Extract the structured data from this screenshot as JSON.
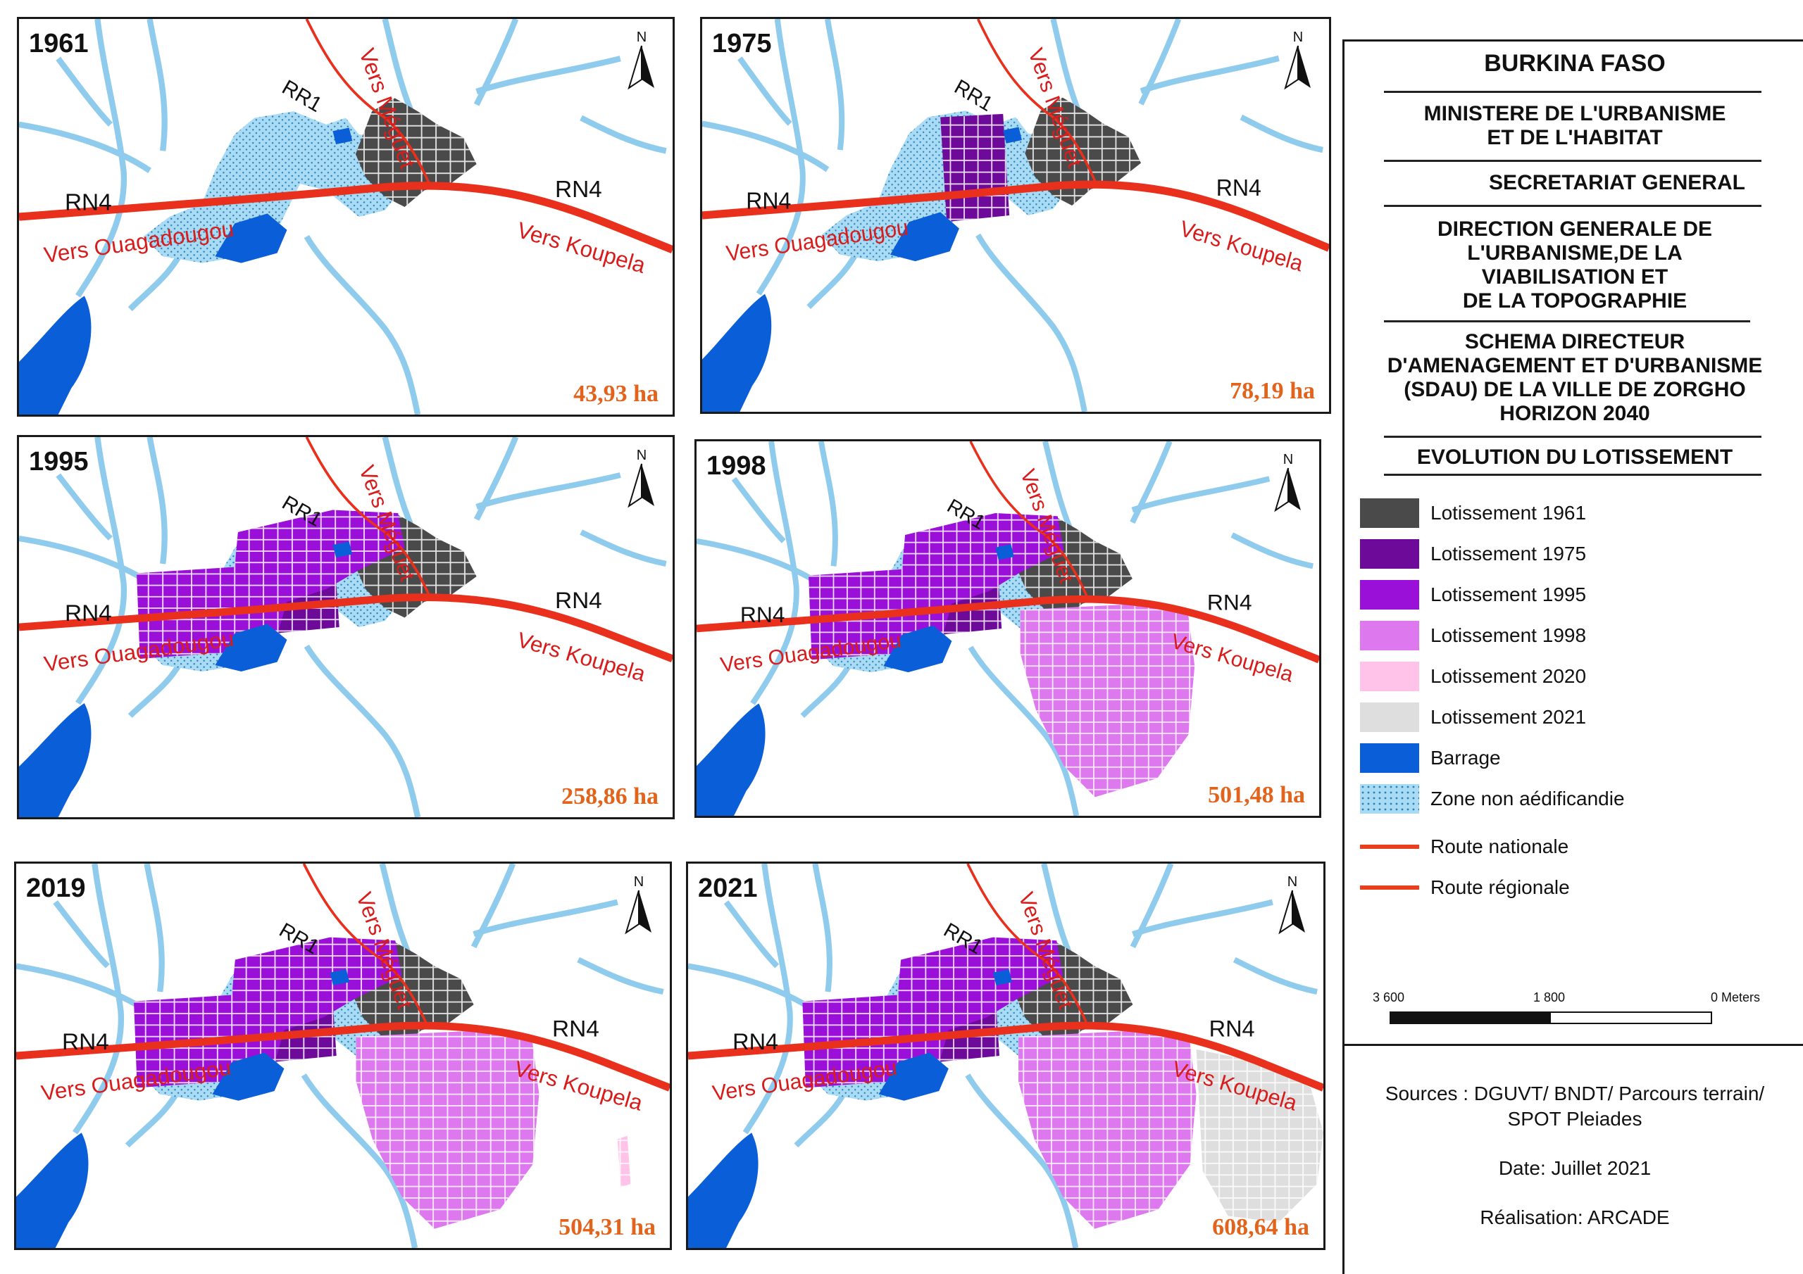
{
  "panels": [
    {
      "year": "1961",
      "area": "43,93 ha",
      "layers": [
        "l1961"
      ]
    },
    {
      "year": "1975",
      "area": "78,19 ha",
      "layers": [
        "l1961",
        "l1975"
      ]
    },
    {
      "year": "1995",
      "area": "258,86 ha",
      "layers": [
        "l1961",
        "l1975",
        "l1995"
      ]
    },
    {
      "year": "1998",
      "area": "501,48 ha",
      "layers": [
        "l1961",
        "l1975",
        "l1995",
        "l1998"
      ]
    },
    {
      "year": "2019",
      "area": "504,31 ha",
      "layers": [
        "l1961",
        "l1975",
        "l1995",
        "l1998",
        "l2020"
      ]
    },
    {
      "year": "2021",
      "area": "608,64 ha",
      "layers": [
        "l1961",
        "l1975",
        "l1995",
        "l1998",
        "l2020",
        "l2021"
      ]
    }
  ],
  "map_labels": {
    "rn4": "RN4",
    "rr1": "RR1",
    "vers_meguet": "Vers Méguet",
    "vers_ouaga": "Vers Ouagadougou",
    "vers_koupela": "Vers Koupela",
    "north": "N"
  },
  "title_block": {
    "country": "BURKINA FASO",
    "ministry": [
      "MINISTERE DE L'URBANISME",
      "ET DE L'HABITAT"
    ],
    "secretariat": "SECRETARIAT GENERAL",
    "direction": [
      "DIRECTION GENERALE DE",
      "L'URBANISME,DE LA",
      "VIABILISATION ET",
      "DE LA TOPOGRAPHIE"
    ],
    "schema": [
      "SCHEMA DIRECTEUR",
      "D'AMENAGEMENT ET D'URBANISME",
      "(SDAU) DE LA VILLE DE ZORGHO",
      "HORIZON 2040"
    ],
    "map_title": "EVOLUTION DU LOTISSEMENT"
  },
  "legend": [
    {
      "label": "Lotissement 1961",
      "color": "#4a4a4a",
      "kind": "fill"
    },
    {
      "label": "Lotissement 1975",
      "color": "#6e0a9a",
      "kind": "fill"
    },
    {
      "label": "Lotissement 1995",
      "color": "#9b10d8",
      "kind": "fill"
    },
    {
      "label": "Lotissement 1998",
      "color": "#dd78ef",
      "kind": "fill"
    },
    {
      "label": "Lotissement 2020",
      "color": "#ffc2e8",
      "kind": "fill"
    },
    {
      "label": "Lotissement 2021",
      "color": "#dedede",
      "kind": "fill"
    },
    {
      "label": "Barrage",
      "color": "#0a5ed8",
      "kind": "fill"
    },
    {
      "label": "Zone non aédificandie",
      "color": "#9fd6f2",
      "kind": "dots"
    },
    {
      "label": "Route nationale",
      "color": "#e8401c",
      "kind": "line"
    },
    {
      "label": "Route régionale",
      "color": "#e8401c",
      "kind": "line"
    }
  ],
  "scale_bar": {
    "left": "3 600",
    "mid": "1 800",
    "right": "0 Meters"
  },
  "sources": {
    "line1": "Sources : DGUVT/ BNDT/ Parcours terrain/",
    "line2": "SPOT Pleiades",
    "date": "Date: Juillet 2021",
    "author": "Réalisation: ARCADE"
  },
  "colors": {
    "l1961": "#4a4a4a",
    "l1975": "#6e0a9a",
    "l1995": "#9b10d8",
    "l1998": "#dd78ef",
    "l2020": "#ffc2e8",
    "l2021": "#dedede",
    "water": "#0a5ed8",
    "zone": "#9fd6f2",
    "road_main": "#e8301c",
    "road_label": "#d81c1c",
    "area_text": "#e2641c"
  }
}
